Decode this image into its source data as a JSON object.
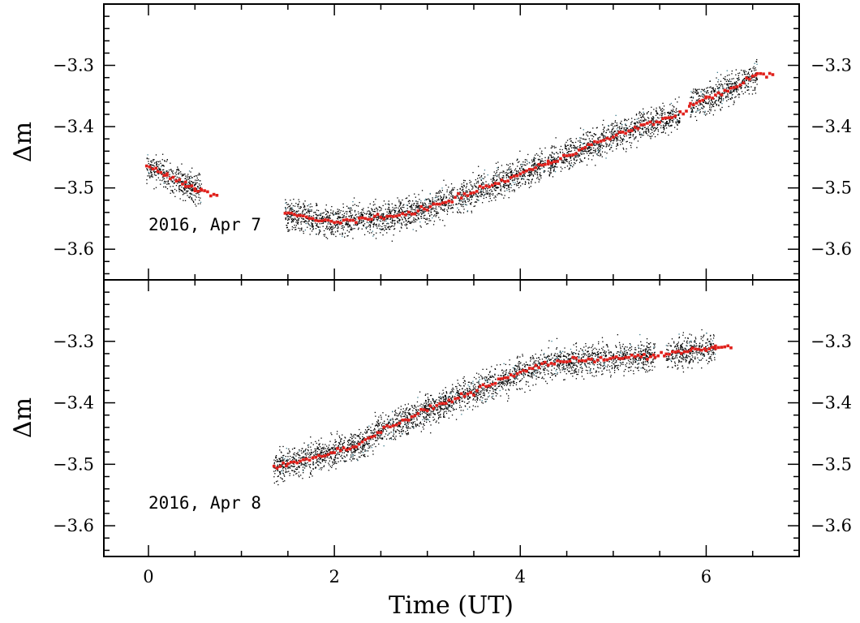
{
  "chart_data": [
    {
      "type": "scatter",
      "title": "",
      "annotation": "2016, Apr 7",
      "xlabel": "",
      "ylabel": "Δm",
      "xlim": [
        -0.48,
        7.0
      ],
      "ylim": [
        -3.2,
        -3.65
      ],
      "y_inverted": true,
      "xticks": [
        0,
        2,
        4,
        6
      ],
      "yticks": [
        -3.6,
        -3.5,
        -3.4,
        -3.3
      ],
      "ytick_labels": [
        "−3.6",
        "−3.5",
        "−3.4",
        "−3.3"
      ],
      "grid": false,
      "series": [
        {
          "color": "#000000",
          "points_note": "dense black individual observations scattered about the red trend with ~±0.03 mag spread",
          "segments": [
            [
              -0.02,
              0.57
            ],
            [
              1.47,
              4.27
            ],
            [
              4.3,
              5.72
            ],
            [
              5.83,
              6.55
            ]
          ]
        },
        {
          "color": "#e0201b",
          "x": [
            -0.02,
            0.1,
            0.2,
            0.3,
            0.4,
            0.5,
            0.57,
            1.47,
            1.6,
            1.8,
            2.0,
            2.2,
            2.4,
            2.6,
            2.8,
            3.0,
            3.2,
            3.4,
            3.6,
            3.8,
            4.0,
            4.2,
            4.3,
            4.5,
            4.7,
            4.9,
            5.1,
            5.3,
            5.5,
            5.72,
            5.83,
            6.0,
            6.2,
            6.4,
            6.55
          ],
          "y": [
            -3.466,
            -3.472,
            -3.48,
            -3.487,
            -3.494,
            -3.5,
            -3.505,
            -3.54,
            -3.545,
            -3.553,
            -3.555,
            -3.552,
            -3.55,
            -3.548,
            -3.54,
            -3.533,
            -3.523,
            -3.512,
            -3.5,
            -3.49,
            -3.477,
            -3.465,
            -3.46,
            -3.447,
            -3.432,
            -3.423,
            -3.41,
            -3.4,
            -3.39,
            -3.38,
            -3.365,
            -3.355,
            -3.342,
            -3.328,
            -3.315
          ]
        }
      ]
    },
    {
      "type": "scatter",
      "title": "",
      "annotation": "2016, Apr 8",
      "xlabel": "Time (UT)",
      "ylabel": "Δm",
      "xlim": [
        -0.48,
        7.0
      ],
      "ylim": [
        -3.2,
        -3.65
      ],
      "y_inverted": true,
      "xticks": [
        0,
        2,
        4,
        6
      ],
      "xtick_labels": [
        "0",
        "2",
        "4",
        "6"
      ],
      "yticks": [
        -3.6,
        -3.5,
        -3.4,
        -3.3
      ],
      "ytick_labels": [
        "−3.6",
        "−3.5",
        "−3.4",
        "−3.3"
      ],
      "grid": false,
      "series": [
        {
          "color": "#000000",
          "points_note": "dense black individual observations scattered about the red trend with ~±0.03 mag spread",
          "segments": [
            [
              1.35,
              5.45
            ],
            [
              5.57,
              6.1
            ]
          ]
        },
        {
          "color": "#e0201b",
          "x": [
            1.35,
            1.5,
            1.7,
            1.9,
            2.1,
            2.3,
            2.5,
            2.7,
            2.9,
            3.1,
            3.3,
            3.5,
            3.7,
            3.9,
            4.1,
            4.3,
            4.5,
            4.7,
            4.9,
            5.1,
            5.3,
            5.45,
            5.57,
            5.7,
            5.85,
            6.0,
            6.1
          ],
          "y": [
            -3.505,
            -3.5,
            -3.492,
            -3.483,
            -3.476,
            -3.465,
            -3.445,
            -3.432,
            -3.418,
            -3.405,
            -3.393,
            -3.382,
            -3.368,
            -3.357,
            -3.345,
            -3.335,
            -3.332,
            -3.33,
            -3.328,
            -3.326,
            -3.325,
            -3.324,
            -3.322,
            -3.318,
            -3.315,
            -3.312,
            -3.31
          ]
        }
      ]
    }
  ]
}
